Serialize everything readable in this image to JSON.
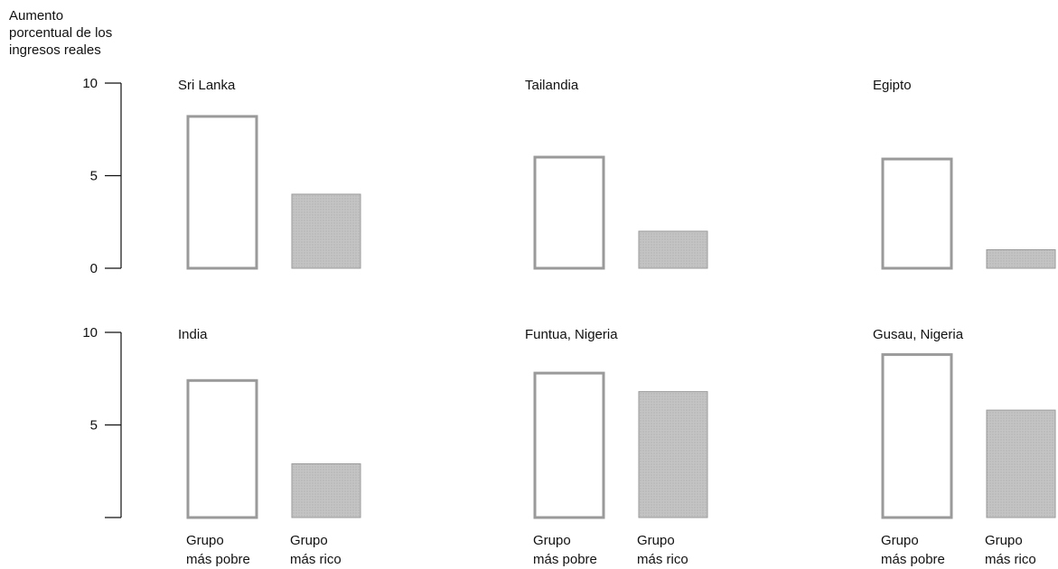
{
  "chart_data": {
    "type": "bar",
    "y_axis_label": [
      "Aumento",
      "porcentual de los",
      "ingresos reales"
    ],
    "category_labels": [
      [
        "Grupo",
        "más pobre"
      ],
      [
        "Grupo",
        "más rico"
      ]
    ],
    "rows": [
      {
        "y_ticks": [
          "10",
          "5",
          "0"
        ],
        "y_tick_values": [
          10,
          5,
          0
        ],
        "ylim": [
          0,
          10
        ]
      },
      {
        "y_ticks": [
          "10",
          "5"
        ],
        "y_tick_values": [
          10,
          5
        ],
        "ylim": [
          0,
          10
        ]
      }
    ],
    "panels": [
      {
        "title": "Sri Lanka",
        "values": [
          8.2,
          4.0
        ]
      },
      {
        "title": "Tailandia",
        "values": [
          6.0,
          2.0
        ]
      },
      {
        "title": "Egipto",
        "values": [
          5.9,
          1.0
        ]
      },
      {
        "title": "India",
        "values": [
          7.4,
          2.9
        ]
      },
      {
        "title": "Funtua, Nigeria",
        "values": [
          7.8,
          6.8
        ]
      },
      {
        "title": "Gusau, Nigeria",
        "values": [
          8.8,
          5.8
        ]
      }
    ],
    "colors": {
      "poorer_fill": "#ffffff",
      "poorer_stroke": "#9a9a9a",
      "richer_fill": "#c4c4c4",
      "richer_stroke": "#9a9a9a",
      "axis": "#111111"
    },
    "grid": false
  }
}
